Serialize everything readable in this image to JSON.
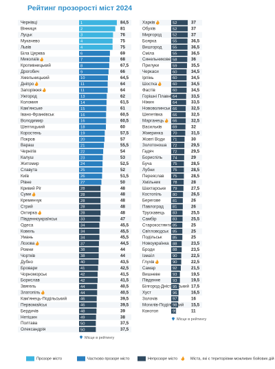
{
  "chart_data": {
    "type": "bar",
    "title": "Рейтинг прозорості міст 2024",
    "categories": [
      "Чернівці",
      "Вінниця",
      "Луцьк",
      "Мукачево",
      "Львів",
      "Біла Церква",
      "Миколаїв",
      "Кропивницький",
      "Дрогобич",
      "Хмельницький",
      "Дніпро",
      "Запоріжжя",
      "Ужгород",
      "Коломия",
      "Кам'янське",
      "Івано-Франківськ",
      "Володимир",
      "Шептицький",
      "Коростень",
      "Покров",
      "Вараш",
      "Чернігів",
      "Калуш",
      "Житомир",
      "Славута",
      "Київ",
      "Рівне",
      "Кривий Ріг",
      "Суми",
      "Кременчук",
      "Стрий",
      "Охтирка",
      "Південноукраїнськ",
      "Одеса",
      "Ковель",
      "Умань",
      "Лозова",
      "Ромни",
      "Чортків",
      "Дубно",
      "Бровари",
      "Чорноморськ",
      "Борислав",
      "Звягель",
      "Златопіль",
      "Кам'янець-Подільський",
      "Первомайськ",
      "Бердичів",
      "Нетішин",
      "Полтава",
      "Олександрія",
      "Харків",
      "Обухів",
      "Миргород",
      "Боярка",
      "Вишгород",
      "Сміла",
      "Синельникове",
      "Прилуки",
      "Черкаси",
      "Ірпінь",
      "Шостка",
      "Фастів",
      "Горішні Плавні",
      "Ніжин",
      "Нововолинськ",
      "Шепетівка",
      "Марганець",
      "Васильків",
      "Жмеринка",
      "Жовті Води",
      "Золотоноша",
      "Гадяч",
      "Бориспіль",
      "Буча",
      "Лубни",
      "Переяслав",
      "Хмільник",
      "Шахтарське",
      "Костопіль",
      "Берегове",
      "Павлоград",
      "Трускавець",
      "Самбір",
      "Старокостянтинів",
      "Світловодськ",
      "Подільськ",
      "Новоукраїнка",
      "Броди",
      "Ізмаїл",
      "Глухів",
      "Самар",
      "Вишневе",
      "Південне",
      "Білгород-Дністровський",
      "Хуст",
      "Золочів",
      "Могилів-Подільський",
      "Конотоп"
    ],
    "ranks": [
      1,
      2,
      3,
      4,
      4,
      6,
      7,
      8,
      9,
      10,
      11,
      11,
      13,
      14,
      15,
      16,
      16,
      18,
      19,
      20,
      21,
      22,
      23,
      24,
      25,
      26,
      27,
      28,
      28,
      28,
      28,
      28,
      33,
      34,
      34,
      34,
      37,
      38,
      38,
      40,
      41,
      42,
      42,
      44,
      44,
      46,
      46,
      48,
      49,
      50,
      50,
      52,
      52,
      52,
      55,
      55,
      55,
      58,
      59,
      60,
      60,
      60,
      60,
      64,
      64,
      66,
      66,
      66,
      69,
      70,
      71,
      72,
      72,
      74,
      75,
      75,
      75,
      78,
      79,
      80,
      81,
      81,
      83,
      83,
      85,
      85,
      85,
      88,
      88,
      90,
      90,
      92,
      93,
      93,
      95,
      96,
      97,
      98,
      99
    ],
    "values": [
      84.5,
      81,
      76,
      75,
      75,
      69,
      68,
      67.5,
      66,
      64.5,
      64,
      64,
      62,
      61.5,
      61,
      60.5,
      60.5,
      60,
      57.5,
      57,
      55.5,
      54,
      53,
      52.5,
      52,
      51.5,
      50,
      48,
      48,
      48,
      48,
      48,
      47,
      45.5,
      45.5,
      45.5,
      44.5,
      44,
      44,
      43.5,
      42.5,
      41.5,
      41.5,
      40.5,
      40.5,
      39.5,
      39.5,
      39,
      38,
      37.5,
      37.5,
      37,
      37,
      37,
      36.5,
      36.5,
      36.5,
      36,
      35.5,
      34.5,
      34.5,
      34.5,
      34.5,
      33.5,
      33.5,
      32.5,
      32.5,
      32.5,
      32,
      31.5,
      30,
      29.5,
      29.5,
      29,
      28.5,
      28.5,
      28.5,
      28,
      27.5,
      26.5,
      26,
      26,
      25.5,
      25.5,
      25,
      25,
      25,
      23.5,
      23.5,
      22.5,
      22.5,
      21.5,
      19.5,
      19.5,
      17.5,
      16.5,
      16,
      15.5,
      11
    ],
    "value_labels": [
      "84,5",
      "81",
      "76",
      "75",
      "75",
      "69",
      "68",
      "67,5",
      "66",
      "64,5",
      "64",
      "64",
      "62",
      "61,5",
      "61",
      "60,5",
      "60,5",
      "60",
      "57,5",
      "57",
      "55,5",
      "54",
      "53",
      "52,5",
      "52",
      "51,5",
      "50",
      "48",
      "48",
      "48",
      "48",
      "48",
      "47",
      "45,5",
      "45,5",
      "45,5",
      "44,5",
      "44",
      "44",
      "43,5",
      "42,5",
      "41,5",
      "41,5",
      "40,5",
      "40,5",
      "39,5",
      "39,5",
      "39",
      "38",
      "37,5",
      "37,5",
      "37",
      "37",
      "37",
      "36,5",
      "36,5",
      "36,5",
      "36",
      "35,5",
      "34,5",
      "34,5",
      "34,5",
      "34,5",
      "33,5",
      "33,5",
      "32,5",
      "32,5",
      "32,5",
      "32",
      "31,5",
      "30",
      "29,5",
      "29,5",
      "29",
      "28,5",
      "28,5",
      "28,5",
      "28",
      "27,5",
      "26,5",
      "26",
      "26",
      "25,5",
      "25,5",
      "25",
      "25",
      "25",
      "23,5",
      "23,5",
      "22,5",
      "22,5",
      "21,5",
      "19,5",
      "19,5",
      "17,5",
      "16,5",
      "16",
      "15,5",
      "11"
    ],
    "status": [
      0,
      0,
      0,
      0,
      0,
      1,
      1,
      1,
      1,
      1,
      1,
      1,
      1,
      1,
      1,
      1,
      1,
      1,
      1,
      1,
      1,
      1,
      1,
      1,
      1,
      1,
      1,
      2,
      2,
      2,
      2,
      2,
      2,
      2,
      2,
      2,
      2,
      2,
      2,
      2,
      2,
      2,
      2,
      2,
      2,
      2,
      2,
      2,
      2,
      2,
      2,
      2,
      2,
      2,
      2,
      2,
      2,
      2,
      2,
      2,
      2,
      2,
      2,
      2,
      2,
      2,
      2,
      2,
      2,
      2,
      2,
      2,
      2,
      2,
      2,
      2,
      2,
      2,
      2,
      2,
      2,
      2,
      2,
      2,
      2,
      2,
      2,
      2,
      2,
      2,
      2,
      2,
      2,
      2,
      2,
      2,
      2,
      2,
      2
    ],
    "combat": [
      6,
      10,
      11,
      28,
      31,
      36,
      44,
      51,
      61,
      67,
      90
    ],
    "legend": [
      {
        "label": "Прозоре місто",
        "color": "#3db4e0"
      },
      {
        "label": "Частково прозоре місто",
        "color": "#2a7fbf"
      },
      {
        "label": "Непрозоре місто",
        "color": "#2f4a60"
      },
      {
        "label": "Міста, які є територіями можливих бойових дій",
        "color": "#f39c1f"
      }
    ],
    "rank_note": "Місце в рейтингу"
  }
}
